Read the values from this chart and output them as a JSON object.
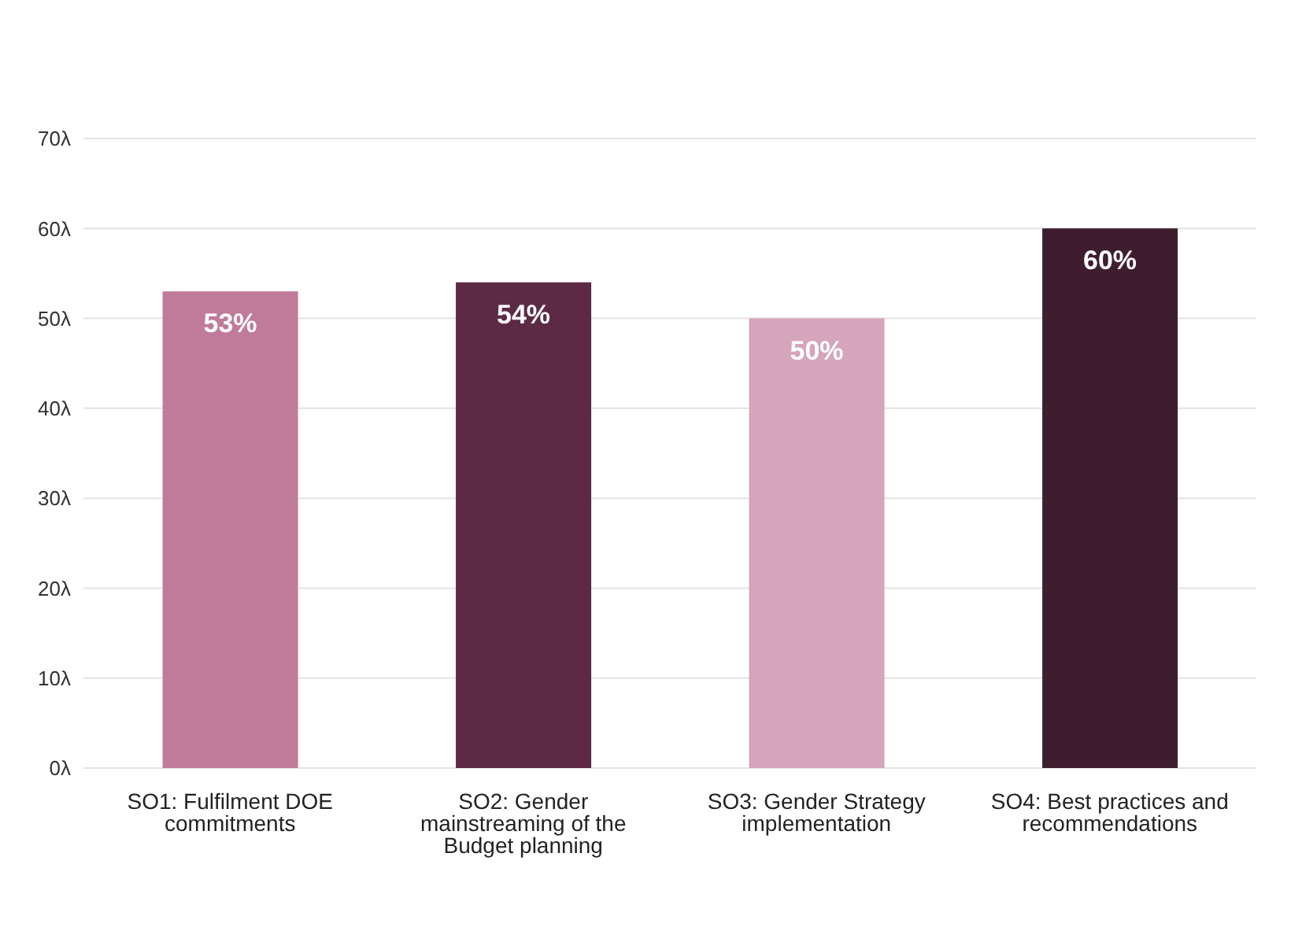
{
  "chart_data": {
    "type": "bar",
    "categories": [
      "SO1: Fulfilment DOE commitments",
      "SO2: Gender mainstreaming of the Budget planning",
      "SO3: Gender Strategy implementation",
      "SO4: Best practices and recommendations"
    ],
    "values": [
      53,
      54,
      50,
      60
    ],
    "colors": [
      "#c07a9a",
      "#5c2a45",
      "#d4a5bb",
      "#3e1e2e"
    ],
    "value_labels": [
      "53%",
      "54%",
      "50%",
      "60%"
    ],
    "ylim": [
      0,
      70
    ],
    "yticks": [
      {
        "value": 0,
        "label": "0λ"
      },
      {
        "value": 10,
        "label": "10λ"
      },
      {
        "value": 20,
        "label": "20λ"
      },
      {
        "value": 30,
        "label": "30λ"
      },
      {
        "value": 40,
        "label": "40λ"
      },
      {
        "value": 50,
        "label": "50λ"
      },
      {
        "value": 60,
        "label": "60λ"
      },
      {
        "value": 70,
        "label": "70λ"
      }
    ],
    "grid": "y"
  }
}
